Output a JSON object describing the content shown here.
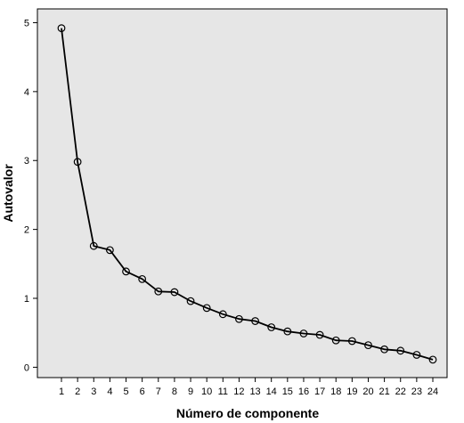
{
  "chart_data": {
    "type": "line",
    "xlabel": "Número de componente",
    "ylabel": "Autovalor",
    "x": [
      1,
      2,
      3,
      4,
      5,
      6,
      7,
      8,
      9,
      10,
      11,
      12,
      13,
      14,
      15,
      16,
      17,
      18,
      19,
      20,
      21,
      22,
      23,
      24
    ],
    "xticks": [
      "1",
      "2",
      "3",
      "4",
      "5",
      "6",
      "7",
      "8",
      "9",
      "10",
      "11",
      "12",
      "13",
      "14",
      "15",
      "16",
      "17",
      "18",
      "19",
      "20",
      "21",
      "22",
      "23",
      "24"
    ],
    "yticks": [
      "0",
      "1",
      "2",
      "3",
      "4",
      "5"
    ],
    "ylim": [
      -0.15,
      5.2
    ],
    "series": [
      {
        "values": [
          4.92,
          2.98,
          1.76,
          1.7,
          1.39,
          1.28,
          1.1,
          1.09,
          0.96,
          0.86,
          0.77,
          0.7,
          0.67,
          0.58,
          0.52,
          0.49,
          0.47,
          0.39,
          0.38,
          0.32,
          0.26,
          0.24,
          0.18,
          0.11
        ]
      }
    ],
    "grid": false,
    "marker": "open-circle",
    "colors": {
      "plot_background": "#e6e6e6",
      "line": "#000000"
    }
  }
}
